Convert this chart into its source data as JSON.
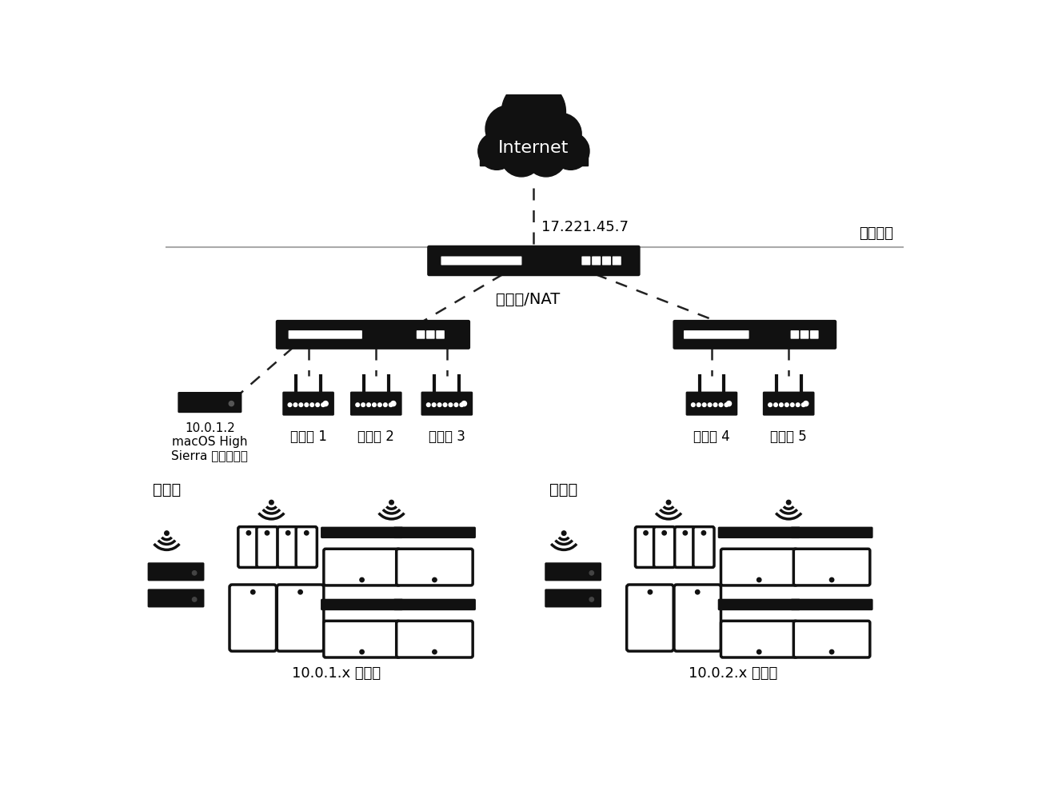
{
  "bg_color": "#ffffff",
  "internet_label": "Internet",
  "ip_label": "17.221.45.7",
  "router_label": "路由器/NAT",
  "lan_label": "區域網路",
  "ap_labels": [
    "連接點 1",
    "連接點 2",
    "連接點 3",
    "連接點 4",
    "連接點 5"
  ],
  "mac_label": "10.0.1.2\nmacOS High\nSierra 或以上版本",
  "client_label": "用戶端",
  "subnet1_label": "10.0.1.x 子網路",
  "subnet2_label": "10.0.2.x 子網路",
  "device_color": "#111111",
  "text_color": "#000000",
  "gray_line_color": "#aaaaaa",
  "dark_navy": "#1a2533"
}
